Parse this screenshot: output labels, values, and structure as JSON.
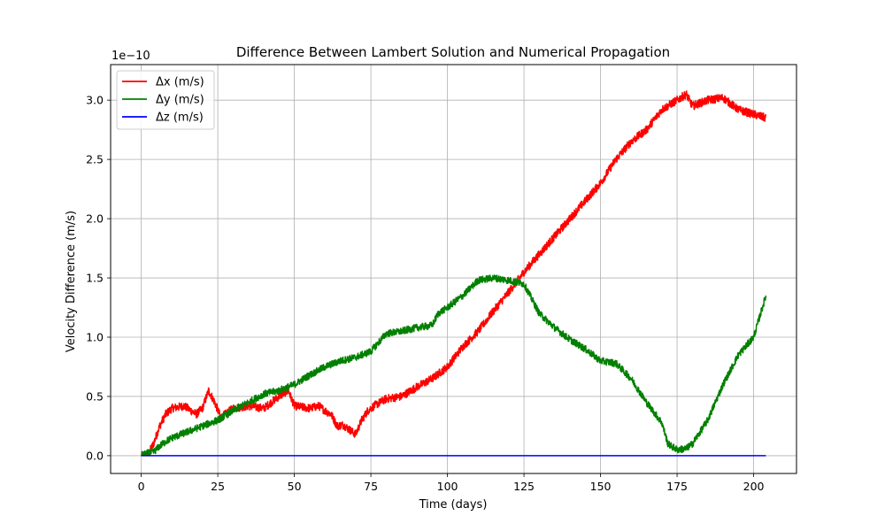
{
  "chart_data": {
    "type": "line",
    "title": "Difference Between Lambert Solution and Numerical Propagation",
    "xlabel": "Time (days)",
    "ylabel": "Velocity Difference (m/s)",
    "y_offset_label": "1e−10",
    "xlim": [
      -10,
      214
    ],
    "ylim": [
      -0.15,
      3.3
    ],
    "x_ticks": [
      0,
      25,
      50,
      75,
      100,
      125,
      150,
      175,
      200
    ],
    "x_tick_labels": [
      "0",
      "25",
      "50",
      "75",
      "100",
      "125",
      "150",
      "175",
      "200"
    ],
    "y_ticks": [
      0.0,
      0.5,
      1.0,
      1.5,
      2.0,
      2.5,
      3.0
    ],
    "y_tick_labels": [
      "0.0",
      "0.5",
      "1.0",
      "1.5",
      "2.0",
      "2.5",
      "3.0"
    ],
    "grid": true,
    "legend_position": "top-left",
    "series": [
      {
        "name": "Δx (m/s)",
        "color": "#ff0000",
        "noise": 0.035,
        "x": [
          0,
          2,
          4,
          6,
          8,
          10,
          14,
          18,
          20,
          22,
          24,
          26,
          30,
          35,
          40,
          45,
          48,
          50,
          55,
          58,
          60,
          62,
          64,
          66,
          68,
          70,
          72,
          74,
          76,
          80,
          85,
          90,
          95,
          100,
          105,
          110,
          115,
          120,
          125,
          130,
          135,
          140,
          145,
          150,
          155,
          160,
          165,
          170,
          175,
          178,
          180,
          185,
          190,
          195,
          200,
          204
        ],
        "y": [
          0.0,
          0.0,
          0.1,
          0.25,
          0.35,
          0.4,
          0.42,
          0.35,
          0.4,
          0.55,
          0.45,
          0.32,
          0.4,
          0.42,
          0.4,
          0.5,
          0.55,
          0.42,
          0.4,
          0.42,
          0.38,
          0.35,
          0.25,
          0.26,
          0.22,
          0.18,
          0.3,
          0.38,
          0.42,
          0.48,
          0.5,
          0.58,
          0.65,
          0.75,
          0.92,
          1.05,
          1.22,
          1.38,
          1.55,
          1.7,
          1.85,
          2.0,
          2.15,
          2.3,
          2.5,
          2.65,
          2.75,
          2.92,
          3.0,
          3.05,
          2.95,
          3.0,
          3.02,
          2.92,
          2.88,
          2.85
        ]
      },
      {
        "name": "Δy (m/s)",
        "color": "#008000",
        "noise": 0.03,
        "x": [
          0,
          2,
          4,
          6,
          8,
          10,
          15,
          20,
          25,
          30,
          35,
          40,
          45,
          50,
          55,
          60,
          65,
          70,
          75,
          80,
          85,
          90,
          95,
          97,
          100,
          105,
          110,
          115,
          120,
          125,
          130,
          135,
          140,
          145,
          150,
          155,
          160,
          165,
          170,
          172,
          175,
          178,
          180,
          185,
          190,
          195,
          200,
          204
        ],
        "y": [
          0.0,
          0.02,
          0.03,
          0.08,
          0.12,
          0.15,
          0.2,
          0.25,
          0.3,
          0.38,
          0.45,
          0.52,
          0.55,
          0.6,
          0.68,
          0.75,
          0.8,
          0.83,
          0.88,
          1.03,
          1.05,
          1.08,
          1.1,
          1.2,
          1.25,
          1.35,
          1.48,
          1.5,
          1.48,
          1.45,
          1.2,
          1.08,
          0.98,
          0.9,
          0.8,
          0.78,
          0.65,
          0.45,
          0.28,
          0.1,
          0.05,
          0.06,
          0.1,
          0.3,
          0.6,
          0.85,
          1.0,
          1.35
        ]
      },
      {
        "name": "Δz (m/s)",
        "color": "#0000ff",
        "noise": 0,
        "x": [
          0,
          204
        ],
        "y": [
          0.0,
          0.0
        ]
      }
    ]
  }
}
